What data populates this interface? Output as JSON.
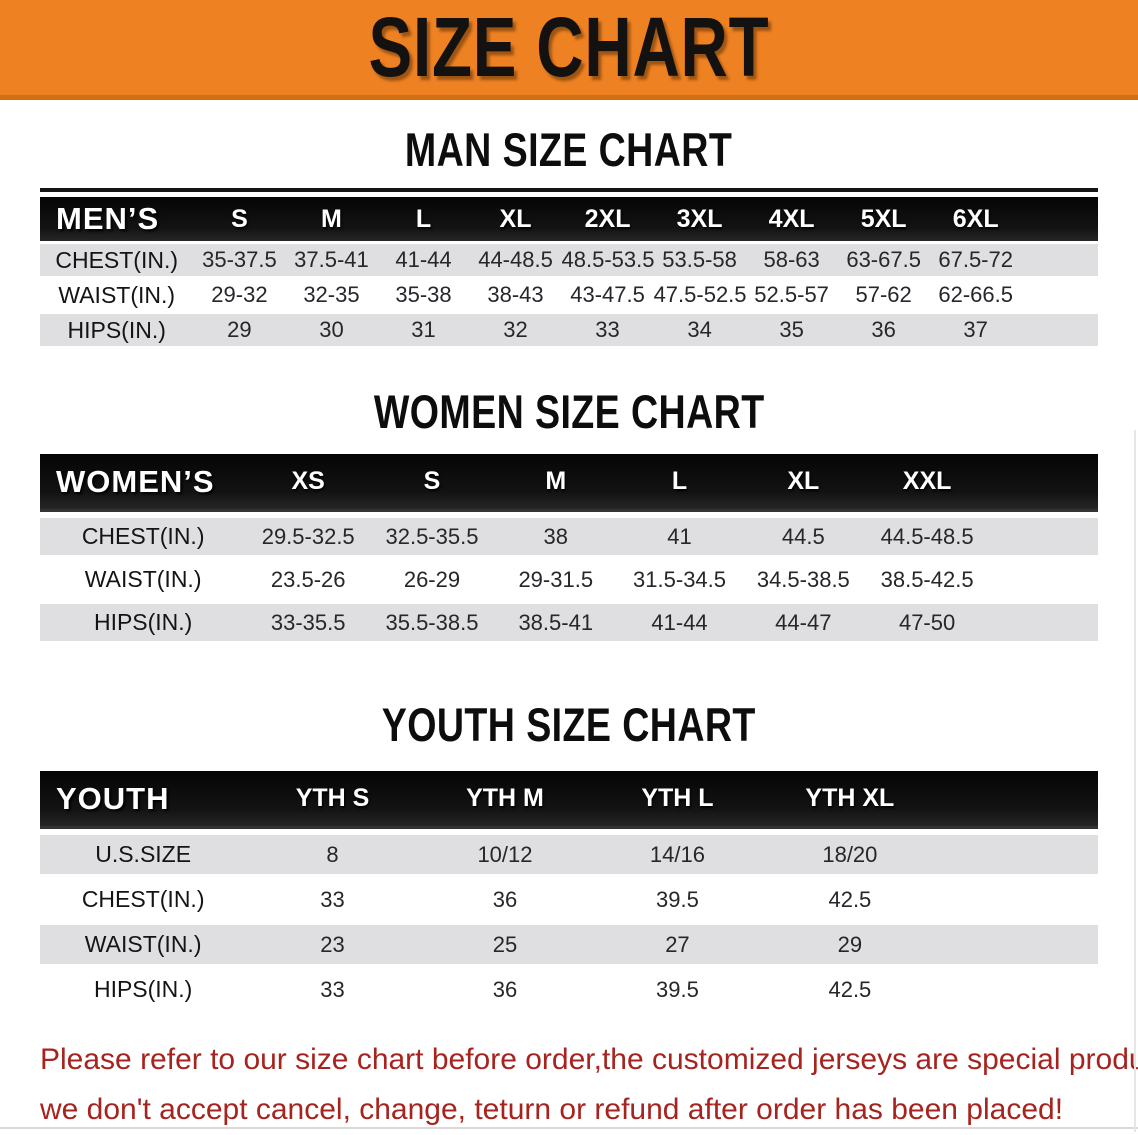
{
  "banner": {
    "title": "SIZE CHART"
  },
  "colors": {
    "banner_bg": "#ee8122",
    "table_header_bg": "#141414",
    "row_gray": "#dfdfe1",
    "footer_red": "#a6241f"
  },
  "men": {
    "heading": "MAN SIZE CHART",
    "table": {
      "header_label": "MEN’S",
      "sizes": [
        "S",
        "M",
        "L",
        "XL",
        "2XL",
        "3XL",
        "4XL",
        "5XL",
        "6XL"
      ],
      "rows": [
        {
          "label": "CHEST(IN.)",
          "values": [
            "35-37.5",
            "37.5-41",
            "41-44",
            "44-48.5",
            "48.5-53.5",
            "53.5-58",
            "58-63",
            "63-67.5",
            "67.5-72"
          ]
        },
        {
          "label": "WAIST(IN.)",
          "values": [
            "29-32",
            "32-35",
            "35-38",
            "38-43",
            "43-47.5",
            "47.5-52.5",
            "52.5-57",
            "57-62",
            "62-66.5"
          ]
        },
        {
          "label": "HIPS(IN.)",
          "values": [
            "29",
            "30",
            "31",
            "32",
            "33",
            "34",
            "35",
            "36",
            "37"
          ]
        }
      ]
    }
  },
  "women": {
    "heading": "WOMEN SIZE CHART",
    "table": {
      "header_label": "WOMEN’S",
      "sizes": [
        "XS",
        "S",
        "M",
        "L",
        "XL",
        "XXL"
      ],
      "rows": [
        {
          "label": "CHEST(IN.)",
          "values": [
            "29.5-32.5",
            "32.5-35.5",
            "38",
            "41",
            "44.5",
            "44.5-48.5"
          ]
        },
        {
          "label": "WAIST(IN.)",
          "values": [
            "23.5-26",
            "26-29",
            "29-31.5",
            "31.5-34.5",
            "34.5-38.5",
            "38.5-42.5"
          ]
        },
        {
          "label": "HIPS(IN.)",
          "values": [
            "33-35.5",
            "35.5-38.5",
            "38.5-41",
            "41-44",
            "44-47",
            "47-50"
          ]
        }
      ]
    }
  },
  "youth": {
    "heading": "YOUTH SIZE CHART",
    "table": {
      "header_label": "YOUTH",
      "sizes": [
        "YTH S",
        "YTH M",
        "YTH L",
        "YTH XL"
      ],
      "rows": [
        {
          "label": "U.S.SIZE",
          "values": [
            "8",
            "10/12",
            "14/16",
            "18/20"
          ]
        },
        {
          "label": "CHEST(IN.)",
          "values": [
            "33",
            "36",
            "39.5",
            "42.5"
          ]
        },
        {
          "label": "WAIST(IN.)",
          "values": [
            "23",
            "25",
            "27",
            "29"
          ]
        },
        {
          "label": "HIPS(IN.)",
          "values": [
            "33",
            "36",
            "39.5",
            "42.5"
          ]
        }
      ]
    }
  },
  "footer": {
    "line1": "Please refer to our size chart before order,the customized jerseys are special products,",
    "line2": "we don't accept cancel, change, teturn or refund after order has been placed!"
  }
}
